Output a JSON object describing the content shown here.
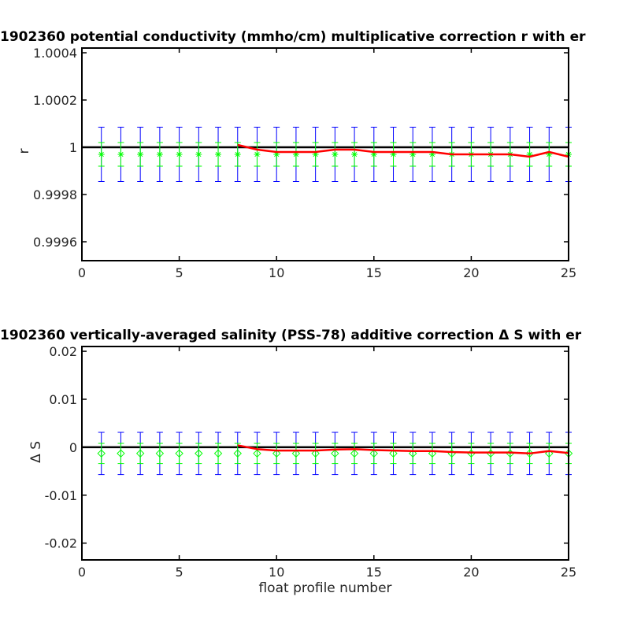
{
  "chart_data": [
    {
      "type": "line",
      "title": "1902360 potential conductivity (mmho/cm) multiplicative correction r with er",
      "xlabel": "",
      "ylabel": "r",
      "xlim": [
        0,
        25
      ],
      "ylim": [
        0.99952,
        1.00042
      ],
      "xticks": [
        "0",
        "5",
        "10",
        "15",
        "20",
        "25"
      ],
      "yticks": [
        {
          "value": 0.9996,
          "label": "0.9996"
        },
        {
          "value": 0.9998,
          "label": "0.9998"
        },
        {
          "value": 1.0,
          "label": "1"
        },
        {
          "value": 1.0002,
          "label": "1.0002"
        },
        {
          "value": 1.0004,
          "label": "1.0004"
        }
      ],
      "reference_line": 1.0,
      "marker": "asterisk",
      "x": [
        1,
        2,
        3,
        4,
        5,
        6,
        7,
        8,
        9,
        10,
        11,
        12,
        13,
        14,
        15,
        16,
        17,
        18,
        19,
        20,
        21,
        22,
        23,
        24,
        25
      ],
      "values": [
        0.99997,
        0.99997,
        0.99997,
        0.99997,
        0.99997,
        0.99997,
        0.99997,
        0.99997,
        0.99997,
        0.99997,
        0.99997,
        0.99997,
        0.99997,
        0.99997,
        0.99997,
        0.99997,
        0.99997,
        0.99997,
        0.99997,
        0.99997,
        0.99997,
        0.99997,
        0.99997,
        0.99997,
        0.99997
      ],
      "error_inner": 5e-05,
      "error_outer": 0.000115,
      "correction_curve": {
        "x": [
          8,
          9,
          10,
          11,
          12,
          13,
          14,
          15,
          16,
          17,
          18,
          19,
          20,
          21,
          22,
          23,
          24,
          25
        ],
        "y": [
          1.00001,
          0.99999,
          0.99998,
          0.99998,
          0.99998,
          0.99999,
          0.99999,
          0.99998,
          0.99998,
          0.99998,
          0.99998,
          0.99997,
          0.99997,
          0.99997,
          0.99997,
          0.99996,
          0.99998,
          0.99996
        ]
      },
      "colors": {
        "outer_error": "#0000ff",
        "inner_error": "#00ff00",
        "markers": "#00ff00",
        "correction": "#ff0000",
        "reference": "#000000"
      }
    },
    {
      "type": "line",
      "title": "1902360 vertically-averaged salinity (PSS-78) additive correction Δ S with er",
      "xlabel": "float profile number",
      "ylabel": "Δ S",
      "xlim": [
        0,
        25
      ],
      "ylim": [
        -0.0235,
        0.021
      ],
      "xticks": [
        "0",
        "5",
        "10",
        "15",
        "20",
        "25"
      ],
      "yticks": [
        {
          "value": -0.02,
          "label": "-0.02"
        },
        {
          "value": -0.01,
          "label": "-0.01"
        },
        {
          "value": 0.0,
          "label": "0"
        },
        {
          "value": 0.01,
          "label": "0.01"
        },
        {
          "value": 0.02,
          "label": "0.02"
        }
      ],
      "reference_line": 0.0,
      "marker": "diamond",
      "x": [
        1,
        2,
        3,
        4,
        5,
        6,
        7,
        8,
        9,
        10,
        11,
        12,
        13,
        14,
        15,
        16,
        17,
        18,
        19,
        20,
        21,
        22,
        23,
        24,
        25
      ],
      "values": [
        -0.0013,
        -0.0013,
        -0.0013,
        -0.0013,
        -0.0013,
        -0.0013,
        -0.0013,
        -0.0013,
        -0.0013,
        -0.0013,
        -0.0013,
        -0.0013,
        -0.0013,
        -0.0013,
        -0.0013,
        -0.0013,
        -0.0013,
        -0.0013,
        -0.0013,
        -0.0013,
        -0.0013,
        -0.0013,
        -0.0013,
        -0.0013,
        -0.0013
      ],
      "error_inner": 0.0021,
      "error_outer": 0.0044,
      "correction_curve": {
        "x": [
          8,
          9,
          10,
          11,
          12,
          13,
          14,
          15,
          16,
          17,
          18,
          19,
          20,
          21,
          22,
          23,
          24,
          25
        ],
        "y": [
          0.0004,
          -0.0004,
          -0.0007,
          -0.0007,
          -0.0007,
          -0.0005,
          -0.0004,
          -0.0006,
          -0.0007,
          -0.0008,
          -0.0008,
          -0.001,
          -0.0011,
          -0.0011,
          -0.0011,
          -0.0013,
          -0.0008,
          -0.0012
        ]
      },
      "colors": {
        "outer_error": "#0000ff",
        "inner_error": "#00ff00",
        "markers": "#00ff00",
        "correction": "#ff0000",
        "reference": "#000000"
      }
    }
  ]
}
